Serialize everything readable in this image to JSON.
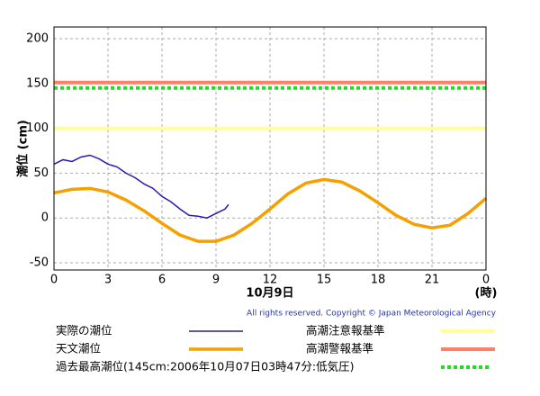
{
  "chart_data": {
    "type": "line",
    "y_label": "潮位 (cm)",
    "x_label": "10月9日",
    "x_unit": "(時)",
    "copyright": "All rights reserved. Copyright © Japan Meteorological Agency",
    "xlim": [
      0,
      24
    ],
    "xticks": [
      0,
      3,
      6,
      9,
      12,
      15,
      18,
      21,
      {
        "value": 24,
        "label": "0"
      }
    ],
    "ylim": [
      -58,
      213
    ],
    "yticks": [
      -50,
      0,
      50,
      100,
      150,
      200
    ],
    "grid": true,
    "series": [
      {
        "name": "実際の潮位",
        "color": "#2a1aa8",
        "x": [
          0,
          0.5,
          1,
          1.5,
          2,
          2.5,
          3,
          3.5,
          4,
          4.5,
          5,
          5.5,
          6,
          6.5,
          7,
          7.5,
          8,
          8.5,
          9,
          9.5,
          9.7
        ],
        "values": [
          60,
          65,
          63,
          68,
          70,
          66,
          60,
          57,
          50,
          45,
          38,
          33,
          24,
          18,
          10,
          3,
          2,
          0,
          5,
          10,
          15
        ]
      },
      {
        "name": "天文潮位",
        "color": "#f5a000",
        "x": [
          0,
          1,
          2,
          3,
          4,
          5,
          6,
          7,
          8,
          9,
          10,
          11,
          12,
          13,
          14,
          15,
          16,
          17,
          18,
          19,
          20,
          21,
          22,
          23,
          24
        ],
        "values": [
          28,
          32,
          33,
          29,
          20,
          8,
          -6,
          -19,
          -26,
          -26,
          -19,
          -6,
          10,
          27,
          39,
          43,
          40,
          30,
          17,
          3,
          -7,
          -11,
          -8,
          5,
          22
        ]
      }
    ],
    "reference_lines": [
      {
        "name": "高潮注意報基準",
        "value": 100,
        "color": "#ffff99",
        "style": "solid"
      },
      {
        "name": "高潮警報基準",
        "value": 151,
        "color": "#ff7f6a",
        "style": "solid"
      },
      {
        "name": "過去最高潮位(145cm:2006年10月07日03時47分:低気圧)",
        "value": 145,
        "color": "#22dd22",
        "style": "dotted"
      }
    ]
  }
}
